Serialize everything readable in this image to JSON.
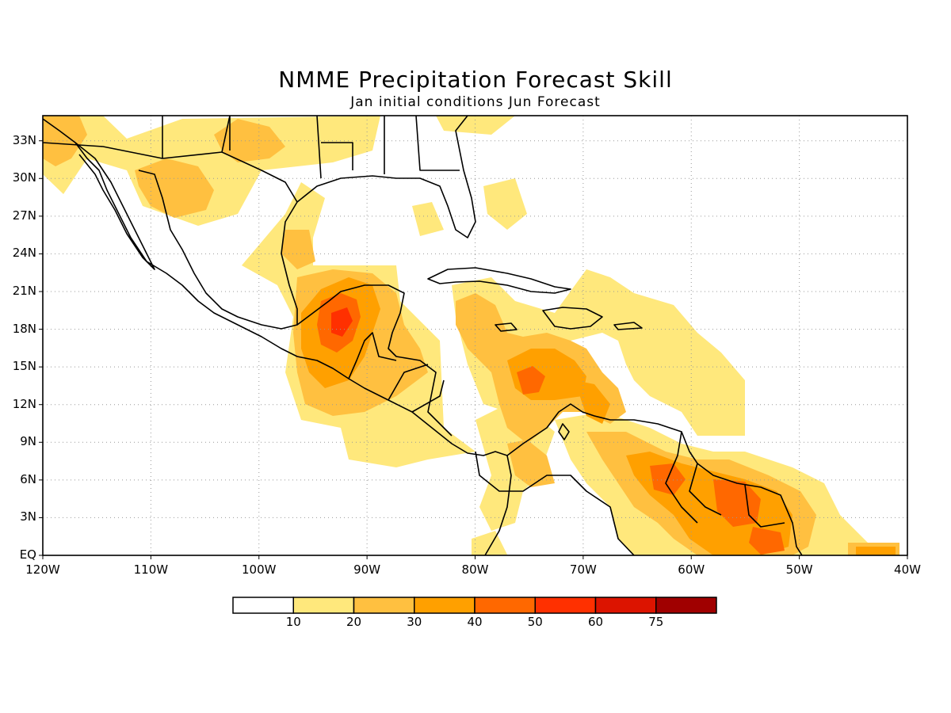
{
  "title": "NMME Precipitation Forecast Skill",
  "subtitle": "Jan initial conditions  Jun Forecast",
  "map": {
    "lon_range": [
      -120,
      -40
    ],
    "lat_range": [
      0,
      35
    ],
    "lat_ticks": [
      {
        "value": 33,
        "label": "33N"
      },
      {
        "value": 30,
        "label": "30N"
      },
      {
        "value": 27,
        "label": "27N"
      },
      {
        "value": 24,
        "label": "24N"
      },
      {
        "value": 21,
        "label": "21N"
      },
      {
        "value": 18,
        "label": "18N"
      },
      {
        "value": 15,
        "label": "15N"
      },
      {
        "value": 12,
        "label": "12N"
      },
      {
        "value": 9,
        "label": "9N"
      },
      {
        "value": 6,
        "label": "6N"
      },
      {
        "value": 3,
        "label": "3N"
      },
      {
        "value": 0,
        "label": "EQ"
      }
    ],
    "lon_ticks": [
      {
        "value": -120,
        "label": "120W"
      },
      {
        "value": -110,
        "label": "110W"
      },
      {
        "value": -100,
        "label": "100W"
      },
      {
        "value": -90,
        "label": "90W"
      },
      {
        "value": -80,
        "label": "80W"
      },
      {
        "value": -70,
        "label": "70W"
      },
      {
        "value": -60,
        "label": "60W"
      },
      {
        "value": -50,
        "label": "50W"
      },
      {
        "value": -40,
        "label": "40W"
      }
    ],
    "grid": "dotted"
  },
  "colorbar": {
    "colors": [
      "#ffffff",
      "#ffe87c",
      "#ffc040",
      "#ffa000",
      "#ff6800",
      "#ff3000",
      "#dc1400",
      "#a00000"
    ],
    "labels": [
      "10",
      "20",
      "30",
      "40",
      "50",
      "60",
      "75"
    ]
  }
}
